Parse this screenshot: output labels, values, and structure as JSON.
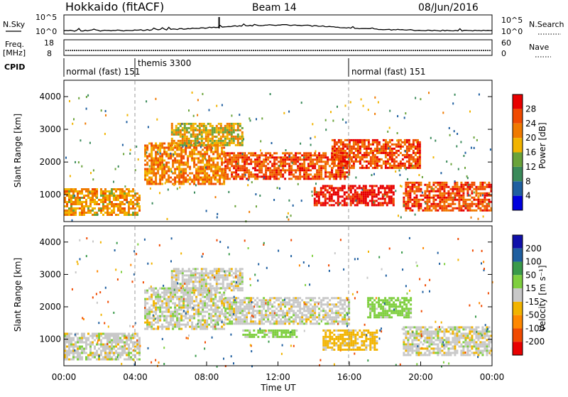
{
  "header": {
    "station": "Hokkaido (fitACF)",
    "beam": "Beam 14",
    "date": "08/Jun/2016"
  },
  "side_labels": {
    "nsky": "N.Sky",
    "nsearch": "N.Search",
    "freq_line1": "Freq.",
    "freq_line2": "[MHz]",
    "nave": "Nave",
    "cpid": "CPID"
  },
  "noise_panel": {
    "left_ticks": [
      "10^5",
      "10^0"
    ],
    "right_ticks": [
      "10^5",
      "10^0"
    ]
  },
  "freq_panel": {
    "left_ticks": [
      "18",
      "8"
    ],
    "right_ticks": [
      "60",
      "0"
    ]
  },
  "cpid_bar": {
    "segments": [
      {
        "label": "normal (fast) 151",
        "start_hour": 0
      },
      {
        "label": "themis 3300",
        "start_hour": 4
      },
      {
        "label": "normal (fast) 151",
        "start_hour": 16
      }
    ]
  },
  "colors": {
    "power": [
      "#0000dd",
      "#1f5fa0",
      "#3a8a5a",
      "#6aa33a",
      "#f2b400",
      "#f07a00",
      "#f04a00",
      "#e80000"
    ],
    "velocity": [
      "#e80000",
      "#f04a00",
      "#ff8800",
      "#f2b400",
      "#c8c8c8",
      "#7fcf3f",
      "#3a9a4a",
      "#1f5fa0",
      "#1010aa"
    ],
    "ground_scatter": "#c0c0c0"
  },
  "chart_data": [
    {
      "type": "heatmap",
      "name": "power",
      "xlabel": "",
      "ylabel": "Slant Range [km]",
      "y_ticks": [
        "1000",
        "2000",
        "3000",
        "4000"
      ],
      "ylim": [
        180,
        4500
      ],
      "xlim_hours": [
        0,
        24
      ],
      "colorbar": {
        "label": "Power [dB]",
        "ticks": [
          "4",
          "8",
          "12",
          "16",
          "20",
          "24",
          "28"
        ],
        "range": [
          0,
          32
        ]
      },
      "echo_bands": [
        {
          "hour_start": 0,
          "hour_end": 4.2,
          "range_low": 400,
          "range_high": 1200,
          "value": 20
        },
        {
          "hour_start": 4.5,
          "hour_end": 9,
          "range_low": 1300,
          "range_high": 2600,
          "value": 22
        },
        {
          "hour_start": 6,
          "hour_end": 10,
          "range_low": 2500,
          "range_high": 3200,
          "value": 18
        },
        {
          "hour_start": 9,
          "hour_end": 16,
          "range_low": 1500,
          "range_high": 2300,
          "value": 26
        },
        {
          "hour_start": 14,
          "hour_end": 18.5,
          "range_low": 700,
          "range_high": 1300,
          "value": 30
        },
        {
          "hour_start": 15,
          "hour_end": 20,
          "range_low": 1800,
          "range_high": 2700,
          "value": 26
        },
        {
          "hour_start": 19,
          "hour_end": 24,
          "range_low": 500,
          "range_high": 1400,
          "value": 26
        }
      ]
    },
    {
      "type": "heatmap",
      "name": "velocity",
      "xlabel": "Time UT",
      "x_ticks": [
        "00:00",
        "04:00",
        "08:00",
        "12:00",
        "16:00",
        "20:00",
        "00:00"
      ],
      "ylabel": "Slant Range [km]",
      "y_ticks": [
        "1000",
        "2000",
        "3000",
        "4000"
      ],
      "ylim": [
        180,
        4500
      ],
      "xlim_hours": [
        0,
        24
      ],
      "colorbar": {
        "label": "Velocity [m s⁻¹]",
        "ticks": [
          "200",
          "100",
          "50",
          "15",
          "-15",
          "-50",
          "-100",
          "-200"
        ]
      },
      "echo_bands": [
        {
          "hour_start": 0,
          "hour_end": 4.2,
          "range_low": 400,
          "range_high": 1200,
          "value": 0
        },
        {
          "hour_start": 4.5,
          "hour_end": 9,
          "range_low": 1300,
          "range_high": 2600,
          "value": 0
        },
        {
          "hour_start": 6,
          "hour_end": 10,
          "range_low": 2500,
          "range_high": 3200,
          "value": 0
        },
        {
          "hour_start": 9,
          "hour_end": 16,
          "range_low": 1500,
          "range_high": 2300,
          "value": 0
        },
        {
          "hour_start": 10,
          "hour_end": 13,
          "range_low": 1100,
          "range_high": 1300,
          "value": 30
        },
        {
          "hour_start": 14.5,
          "hour_end": 17.5,
          "range_low": 700,
          "range_high": 1300,
          "value": -30
        },
        {
          "hour_start": 17,
          "hour_end": 19.5,
          "range_low": 1700,
          "range_high": 2300,
          "value": 30
        },
        {
          "hour_start": 19,
          "hour_end": 24,
          "range_low": 500,
          "range_high": 1400,
          "value": 0
        }
      ]
    }
  ]
}
